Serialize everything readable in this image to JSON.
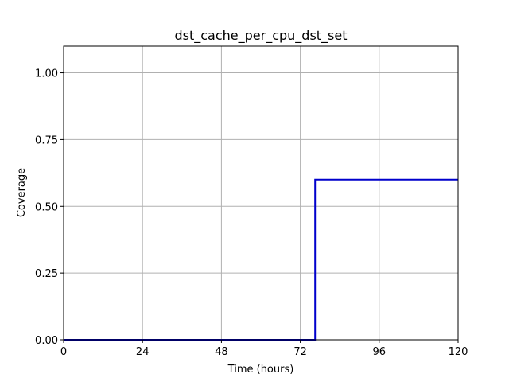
{
  "chart_data": {
    "type": "line",
    "title": "dst_cache_per_cpu_dst_set",
    "xlabel": "Time (hours)",
    "ylabel": "Coverage",
    "xlim": [
      0,
      120
    ],
    "ylim": [
      0,
      1.1
    ],
    "grid": true,
    "x_ticks": [
      0,
      24,
      48,
      72,
      96,
      120
    ],
    "x_tick_labels": [
      "0",
      "24",
      "48",
      "72",
      "96",
      "120"
    ],
    "y_ticks": [
      0,
      0.25,
      0.5,
      0.75,
      1.0
    ],
    "y_tick_labels": [
      "0.00",
      "0.25",
      "0.50",
      "0.75",
      "1.00"
    ],
    "series": [
      {
        "color": "#0000cc",
        "x": [
          0,
          76.5,
          76.5,
          120
        ],
        "y": [
          0,
          0,
          0.6,
          0.6
        ]
      }
    ]
  }
}
